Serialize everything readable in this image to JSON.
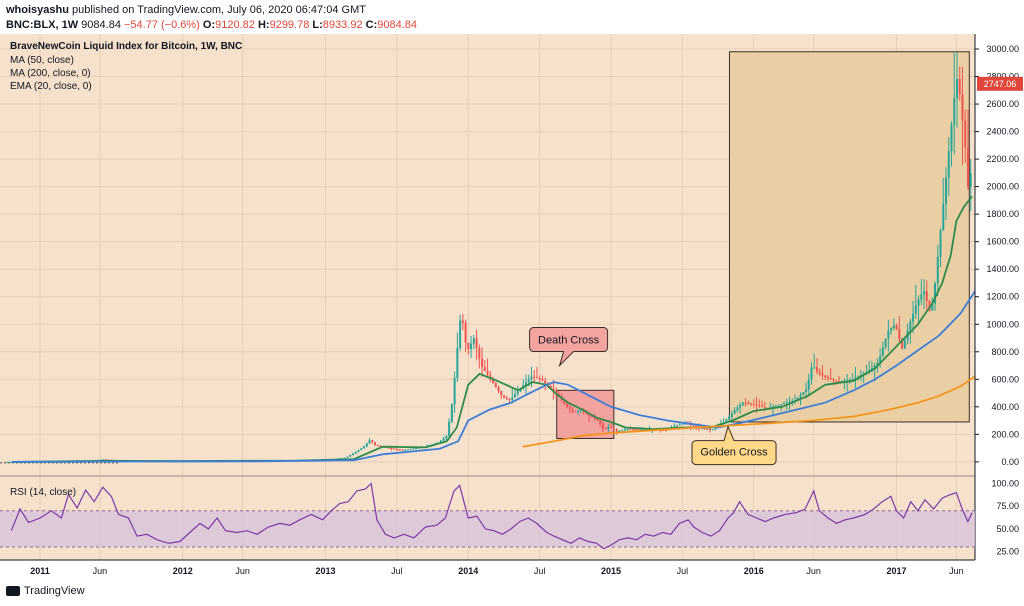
{
  "header": {
    "author": "whoisyashu",
    "published_text": "published on TradingView.com, July 06, 2020 06:47:04 GMT",
    "symbol": "BNC:BLX, 1W",
    "last": "9084.84",
    "change": "−54.77 (−0.6%)",
    "o_label": "O:",
    "o_value": "9120.82",
    "h_label": "H:",
    "h_value": "9299.78",
    "l_label": "L:",
    "l_value": "8933.92",
    "c_label": "C:",
    "c_value": "9084.84"
  },
  "footer": {
    "brand": "TradingView"
  },
  "colors": {
    "background": "#f5e1cc",
    "up": "#26a69a",
    "down": "#ef5350",
    "ma50": "#2e8b4b",
    "ma200": "#3d7ed8",
    "ema20": "#f5941d",
    "rsi": "#7b3aa8",
    "rsi_band": "#d8c3dc",
    "death_box": "#f2a3a0",
    "bull_box": "#e9cfa3",
    "death_label": "#f4a4a0",
    "golden_label": "#ffd88a",
    "price_tag": "#e0473a"
  },
  "chart_data": {
    "type": "candlestick",
    "title": "BraveNewCoin Liquid Index for Bitcoin, 1W, BNC",
    "legend": [
      "MA (50, close)",
      "MA (200, close, 0)",
      "EMA (20, close, 0)"
    ],
    "y_ticks": [
      0,
      200,
      400,
      600,
      800,
      1000,
      1200,
      1400,
      1600,
      1800,
      2000,
      2200,
      2400,
      2600,
      2800,
      3000
    ],
    "y_tick_labels": [
      "0.00",
      "200.00",
      "400.00",
      "600.00",
      "800.00",
      "1000.00",
      "1200.00",
      "1400.00",
      "1600.00",
      "1800.00",
      "2000.00",
      "2200.00",
      "2400.00",
      "2600.00",
      "2800.00",
      "3000.00"
    ],
    "ylim": [
      -30,
      3080
    ],
    "last_price_tag": "2747.06",
    "last_price_value": 2747,
    "x_ticks": [
      {
        "label": "2011",
        "t": 2011.0
      },
      {
        "label": "Jun",
        "t": 2011.42
      },
      {
        "label": "2012",
        "t": 2012.0
      },
      {
        "label": "Jun",
        "t": 2012.42
      },
      {
        "label": "2013",
        "t": 2013.0
      },
      {
        "label": "Jul",
        "t": 2013.5
      },
      {
        "label": "2014",
        "t": 2014.0
      },
      {
        "label": "Jul",
        "t": 2014.5
      },
      {
        "label": "2015",
        "t": 2015.0
      },
      {
        "label": "Jul",
        "t": 2015.5
      },
      {
        "label": "2016",
        "t": 2016.0
      },
      {
        "label": "Jun",
        "t": 2016.42
      },
      {
        "label": "2017",
        "t": 2017.0
      },
      {
        "label": "Jun",
        "t": 2017.42
      }
    ],
    "xlim": [
      2010.72,
      2017.55
    ],
    "price_series": [
      [
        2010.8,
        0.1
      ],
      [
        2011.0,
        0.3
      ],
      [
        2011.3,
        1
      ],
      [
        2011.45,
        18
      ],
      [
        2011.6,
        9
      ],
      [
        2011.9,
        3
      ],
      [
        2012.2,
        5
      ],
      [
        2012.5,
        7
      ],
      [
        2012.8,
        11
      ],
      [
        2013.0,
        14
      ],
      [
        2013.15,
        30
      ],
      [
        2013.28,
        110
      ],
      [
        2013.32,
        160
      ],
      [
        2013.36,
        120
      ],
      [
        2013.45,
        100
      ],
      [
        2013.55,
        85
      ],
      [
        2013.7,
        110
      ],
      [
        2013.8,
        140
      ],
      [
        2013.86,
        190
      ],
      [
        2013.9,
        450
      ],
      [
        2013.94,
        900
      ],
      [
        2013.96,
        1100
      ],
      [
        2014.0,
        800
      ],
      [
        2014.05,
        900
      ],
      [
        2014.1,
        700
      ],
      [
        2014.18,
        580
      ],
      [
        2014.25,
        470
      ],
      [
        2014.3,
        450
      ],
      [
        2014.38,
        540
      ],
      [
        2014.45,
        620
      ],
      [
        2014.52,
        600
      ],
      [
        2014.6,
        520
      ],
      [
        2014.65,
        470
      ],
      [
        2014.7,
        400
      ],
      [
        2014.75,
        360
      ],
      [
        2014.8,
        380
      ],
      [
        2014.85,
        340
      ],
      [
        2014.92,
        300
      ],
      [
        2014.96,
        230
      ],
      [
        2015.0,
        260
      ],
      [
        2015.05,
        220
      ],
      [
        2015.12,
        240
      ],
      [
        2015.2,
        235
      ],
      [
        2015.3,
        240
      ],
      [
        2015.4,
        230
      ],
      [
        2015.45,
        260
      ],
      [
        2015.52,
        280
      ],
      [
        2015.58,
        270
      ],
      [
        2015.65,
        240
      ],
      [
        2015.72,
        235
      ],
      [
        2015.8,
        290
      ],
      [
        2015.84,
        330
      ],
      [
        2015.88,
        380
      ],
      [
        2015.93,
        430
      ],
      [
        2016.0,
        420
      ],
      [
        2016.1,
        390
      ],
      [
        2016.2,
        420
      ],
      [
        2016.3,
        450
      ],
      [
        2016.38,
        530
      ],
      [
        2016.42,
        710
      ],
      [
        2016.45,
        660
      ],
      [
        2016.5,
        620
      ],
      [
        2016.6,
        580
      ],
      [
        2016.7,
        600
      ],
      [
        2016.8,
        650
      ],
      [
        2016.88,
        720
      ],
      [
        2016.95,
        950
      ],
      [
        2017.0,
        1000
      ],
      [
        2017.05,
        820
      ],
      [
        2017.1,
        1000
      ],
      [
        2017.15,
        1150
      ],
      [
        2017.2,
        1250
      ],
      [
        2017.25,
        1070
      ],
      [
        2017.28,
        1300
      ],
      [
        2017.32,
        1700
      ],
      [
        2017.36,
        2100
      ],
      [
        2017.4,
        2500
      ],
      [
        2017.43,
        2800
      ],
      [
        2017.45,
        2700
      ],
      [
        2017.47,
        2500
      ],
      [
        2017.49,
        2300
      ],
      [
        2017.51,
        2000
      ],
      [
        2017.53,
        2100
      ]
    ],
    "series": [
      {
        "name": "MA (50, close)",
        "points": [
          [
            2010.8,
            0.1
          ],
          [
            2011.5,
            8
          ],
          [
            2012.0,
            6
          ],
          [
            2012.8,
            9
          ],
          [
            2013.2,
            20
          ],
          [
            2013.4,
            110
          ],
          [
            2013.7,
            105
          ],
          [
            2013.85,
            150
          ],
          [
            2013.92,
            250
          ],
          [
            2014.0,
            560
          ],
          [
            2014.08,
            640
          ],
          [
            2014.2,
            590
          ],
          [
            2014.35,
            520
          ],
          [
            2014.45,
            580
          ],
          [
            2014.55,
            560
          ],
          [
            2014.62,
            490
          ],
          [
            2014.7,
            430
          ],
          [
            2014.8,
            380
          ],
          [
            2014.9,
            320
          ],
          [
            2015.0,
            290
          ],
          [
            2015.1,
            250
          ],
          [
            2015.3,
            238
          ],
          [
            2015.5,
            250
          ],
          [
            2015.7,
            250
          ],
          [
            2015.85,
            300
          ],
          [
            2016.0,
            370
          ],
          [
            2016.2,
            400
          ],
          [
            2016.38,
            480
          ],
          [
            2016.5,
            560
          ],
          [
            2016.7,
            590
          ],
          [
            2016.85,
            680
          ],
          [
            2017.0,
            840
          ],
          [
            2017.15,
            1000
          ],
          [
            2017.25,
            1150
          ],
          [
            2017.32,
            1300
          ],
          [
            2017.38,
            1500
          ],
          [
            2017.42,
            1750
          ],
          [
            2017.47,
            1850
          ],
          [
            2017.53,
            1930
          ]
        ]
      },
      {
        "name": "MA (200, close, 0)",
        "points": [
          [
            2010.8,
            0.1
          ],
          [
            2011.5,
            3
          ],
          [
            2012.5,
            4
          ],
          [
            2013.2,
            12
          ],
          [
            2013.4,
            55
          ],
          [
            2013.8,
            95
          ],
          [
            2013.93,
            150
          ],
          [
            2014.0,
            300
          ],
          [
            2014.15,
            380
          ],
          [
            2014.3,
            430
          ],
          [
            2014.45,
            510
          ],
          [
            2014.55,
            560
          ],
          [
            2014.6,
            580
          ],
          [
            2014.7,
            560
          ],
          [
            2014.85,
            480
          ],
          [
            2015.0,
            400
          ],
          [
            2015.2,
            340
          ],
          [
            2015.4,
            300
          ],
          [
            2015.6,
            270
          ],
          [
            2015.75,
            250
          ],
          [
            2015.9,
            280
          ],
          [
            2016.1,
            330
          ],
          [
            2016.3,
            380
          ],
          [
            2016.5,
            430
          ],
          [
            2016.7,
            520
          ],
          [
            2016.85,
            600
          ],
          [
            2017.0,
            700
          ],
          [
            2017.15,
            810
          ],
          [
            2017.3,
            920
          ],
          [
            2017.45,
            1080
          ],
          [
            2017.55,
            1240
          ]
        ]
      },
      {
        "name": "EMA (20, close, 0)",
        "points": [
          [
            2014.38,
            110
          ],
          [
            2014.6,
            150
          ],
          [
            2014.8,
            190
          ],
          [
            2015.0,
            210
          ],
          [
            2015.3,
            230
          ],
          [
            2015.6,
            250
          ],
          [
            2015.85,
            265
          ],
          [
            2016.1,
            280
          ],
          [
            2016.4,
            300
          ],
          [
            2016.7,
            330
          ],
          [
            2016.95,
            380
          ],
          [
            2017.15,
            430
          ],
          [
            2017.3,
            480
          ],
          [
            2017.45,
            550
          ],
          [
            2017.55,
            620
          ]
        ]
      }
    ],
    "annotations": [
      {
        "text": "Death Cross",
        "box_t": [
          2014.62,
          2015.02
        ],
        "box_v": [
          170,
          520
        ],
        "pointer_t": 2014.64,
        "pointer_v": 540
      },
      {
        "text": "Golden Cross",
        "pointer_t": 2015.82,
        "pointer_v": 300
      },
      {
        "box_t": [
          2015.83,
          2017.51
        ],
        "box_v": [
          290,
          2980
        ]
      }
    ],
    "rsi": {
      "label": "RSI (14, close)",
      "y_ticks": [
        25,
        50,
        75,
        100
      ],
      "y_tick_labels": [
        "25.00",
        "50.00",
        "75.00",
        "100.00"
      ],
      "band": [
        30,
        70
      ],
      "ylim": [
        20,
        104
      ],
      "points": [
        [
          2010.8,
          48
        ],
        [
          2010.86,
          72
        ],
        [
          2010.92,
          57
        ],
        [
          2011.0,
          62
        ],
        [
          2011.08,
          70
        ],
        [
          2011.15,
          62
        ],
        [
          2011.2,
          88
        ],
        [
          2011.26,
          73
        ],
        [
          2011.32,
          93
        ],
        [
          2011.38,
          80
        ],
        [
          2011.44,
          96
        ],
        [
          2011.5,
          86
        ],
        [
          2011.55,
          66
        ],
        [
          2011.62,
          62
        ],
        [
          2011.68,
          42
        ],
        [
          2011.75,
          44
        ],
        [
          2011.82,
          38
        ],
        [
          2011.9,
          34
        ],
        [
          2011.98,
          36
        ],
        [
          2012.05,
          46
        ],
        [
          2012.12,
          56
        ],
        [
          2012.18,
          50
        ],
        [
          2012.24,
          62
        ],
        [
          2012.3,
          48
        ],
        [
          2012.38,
          46
        ],
        [
          2012.45,
          48
        ],
        [
          2012.52,
          44
        ],
        [
          2012.6,
          52
        ],
        [
          2012.68,
          56
        ],
        [
          2012.75,
          54
        ],
        [
          2012.82,
          60
        ],
        [
          2012.9,
          66
        ],
        [
          2012.98,
          60
        ],
        [
          2013.04,
          70
        ],
        [
          2013.1,
          78
        ],
        [
          2013.16,
          80
        ],
        [
          2013.22,
          92
        ],
        [
          2013.28,
          94
        ],
        [
          2013.32,
          100
        ],
        [
          2013.36,
          60
        ],
        [
          2013.42,
          44
        ],
        [
          2013.48,
          40
        ],
        [
          2013.55,
          44
        ],
        [
          2013.62,
          40
        ],
        [
          2013.7,
          52
        ],
        [
          2013.78,
          54
        ],
        [
          2013.84,
          62
        ],
        [
          2013.9,
          92
        ],
        [
          2013.94,
          98
        ],
        [
          2013.97,
          80
        ],
        [
          2014.0,
          62
        ],
        [
          2014.06,
          64
        ],
        [
          2014.12,
          50
        ],
        [
          2014.18,
          48
        ],
        [
          2014.24,
          44
        ],
        [
          2014.3,
          50
        ],
        [
          2014.36,
          58
        ],
        [
          2014.42,
          62
        ],
        [
          2014.48,
          56
        ],
        [
          2014.55,
          46
        ],
        [
          2014.6,
          42
        ],
        [
          2014.66,
          38
        ],
        [
          2014.72,
          34
        ],
        [
          2014.78,
          40
        ],
        [
          2014.84,
          36
        ],
        [
          2014.9,
          34
        ],
        [
          2014.95,
          28
        ],
        [
          2015.0,
          32
        ],
        [
          2015.06,
          38
        ],
        [
          2015.12,
          40
        ],
        [
          2015.18,
          38
        ],
        [
          2015.24,
          44
        ],
        [
          2015.3,
          42
        ],
        [
          2015.36,
          46
        ],
        [
          2015.42,
          44
        ],
        [
          2015.48,
          56
        ],
        [
          2015.54,
          60
        ],
        [
          2015.58,
          52
        ],
        [
          2015.64,
          46
        ],
        [
          2015.7,
          42
        ],
        [
          2015.76,
          48
        ],
        [
          2015.82,
          62
        ],
        [
          2015.86,
          68
        ],
        [
          2015.9,
          80
        ],
        [
          2015.96,
          66
        ],
        [
          2016.02,
          62
        ],
        [
          2016.08,
          58
        ],
        [
          2016.14,
          62
        ],
        [
          2016.22,
          66
        ],
        [
          2016.3,
          68
        ],
        [
          2016.36,
          72
        ],
        [
          2016.42,
          92
        ],
        [
          2016.46,
          70
        ],
        [
          2016.52,
          62
        ],
        [
          2016.58,
          56
        ],
        [
          2016.64,
          60
        ],
        [
          2016.7,
          62
        ],
        [
          2016.78,
          66
        ],
        [
          2016.84,
          72
        ],
        [
          2016.9,
          80
        ],
        [
          2016.96,
          86
        ],
        [
          2017.0,
          70
        ],
        [
          2017.05,
          62
        ],
        [
          2017.1,
          80
        ],
        [
          2017.15,
          70
        ],
        [
          2017.2,
          82
        ],
        [
          2017.26,
          72
        ],
        [
          2017.32,
          84
        ],
        [
          2017.38,
          88
        ],
        [
          2017.42,
          90
        ],
        [
          2017.46,
          72
        ],
        [
          2017.5,
          58
        ],
        [
          2017.53,
          68
        ]
      ]
    }
  }
}
